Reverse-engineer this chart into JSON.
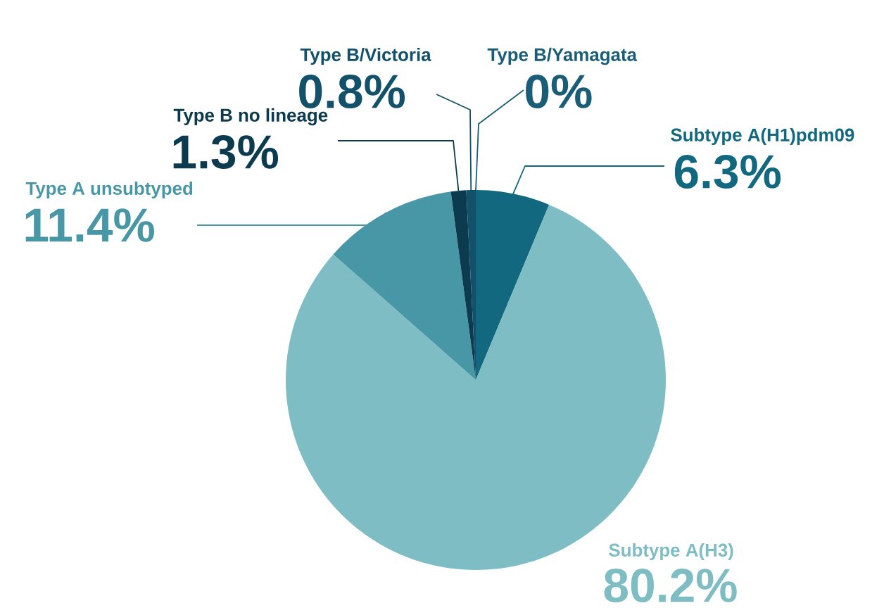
{
  "chart_data": {
    "type": "pie",
    "categories": [
      "Subtype A(H1)pdm09",
      "Subtype A(H3)",
      "Type A unsubtyped",
      "Type B no lineage",
      "Type B/Victoria",
      "Type B/Yamagata"
    ],
    "values": [
      6.3,
      80.2,
      11.4,
      1.3,
      0.8,
      0
    ],
    "colors": [
      "#11687f",
      "#7fbdc4",
      "#4797a7",
      "#0c3b50",
      "#125169",
      "#1a5d76"
    ],
    "value_labels": [
      "6.3%",
      "80.2%",
      "11.4%",
      "1.3%",
      "0.8%",
      "0%"
    ]
  }
}
